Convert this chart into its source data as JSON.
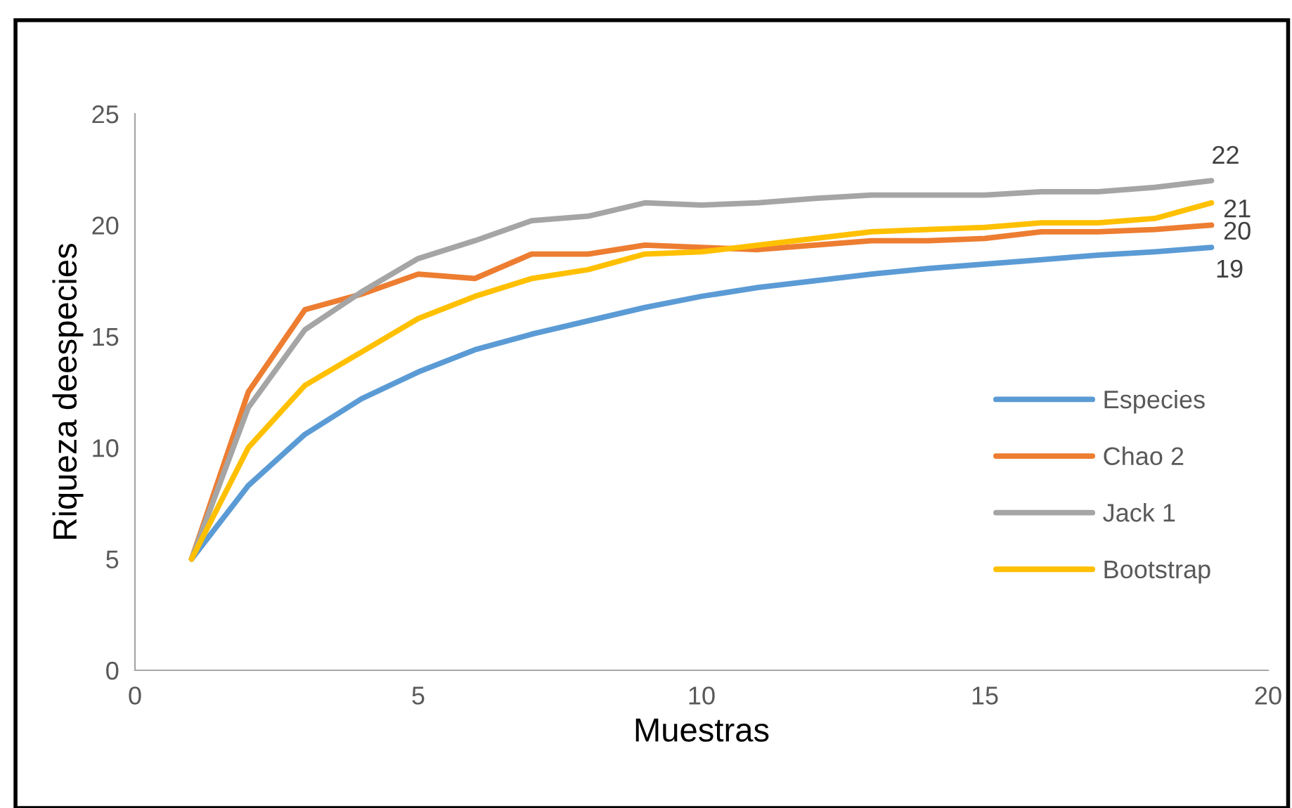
{
  "chart_data": {
    "type": "line",
    "xlabel": "Muestras",
    "ylabel": "Riqueza deespecies",
    "x": [
      1,
      2,
      3,
      4,
      5,
      6,
      7,
      8,
      9,
      10,
      11,
      12,
      13,
      14,
      15,
      16,
      17,
      18,
      19
    ],
    "series": [
      {
        "name": "Especies",
        "color": "#5b9bd5",
        "values": [
          5,
          8.3,
          10.6,
          12.2,
          13.4,
          14.4,
          15.1,
          15.7,
          16.3,
          16.8,
          17.2,
          17.5,
          17.8,
          18.05,
          18.25,
          18.45,
          18.65,
          18.8,
          19
        ],
        "value_labels": [
          null,
          null,
          null,
          null,
          null,
          null,
          null,
          null,
          null,
          null,
          null,
          null,
          null,
          null,
          null,
          null,
          null,
          null,
          "19"
        ]
      },
      {
        "name": "Chao 2",
        "color": "#ed7d31",
        "values": [
          5,
          12.5,
          16.2,
          16.9,
          17.8,
          17.6,
          18.7,
          18.7,
          19.1,
          19,
          18.9,
          19.1,
          19.3,
          19.3,
          19.4,
          19.7,
          19.7,
          19.8,
          20
        ],
        "value_labels": [
          null,
          null,
          null,
          null,
          null,
          null,
          null,
          null,
          null,
          null,
          null,
          null,
          null,
          null,
          null,
          null,
          null,
          null,
          "20"
        ]
      },
      {
        "name": "Jack 1",
        "color": "#a5a5a5",
        "values": [
          5,
          11.8,
          15.3,
          17,
          18.5,
          19.3,
          20.2,
          20.4,
          21,
          20.9,
          21,
          21.2,
          21.35,
          21.35,
          21.35,
          21.5,
          21.5,
          21.7,
          22
        ],
        "value_labels": [
          null,
          null,
          null,
          null,
          null,
          null,
          null,
          null,
          null,
          null,
          null,
          null,
          null,
          null,
          null,
          null,
          null,
          null,
          "22"
        ]
      },
      {
        "name": "Bootstrap",
        "color": "#ffc000",
        "values": [
          5,
          10,
          12.8,
          14.3,
          15.8,
          16.8,
          17.6,
          18,
          18.7,
          18.8,
          19.1,
          19.4,
          19.7,
          19.8,
          19.9,
          20.1,
          20.1,
          20.3,
          21
        ],
        "value_labels": [
          null,
          null,
          null,
          null,
          null,
          null,
          null,
          null,
          null,
          null,
          null,
          null,
          null,
          null,
          null,
          null,
          null,
          null,
          "21"
        ]
      }
    ],
    "xlim": [
      0,
      20
    ],
    "xticks": [
      0,
      5,
      10,
      15,
      20
    ],
    "ylim": [
      0,
      25
    ],
    "yticks": [
      0,
      5,
      10,
      15,
      20,
      25
    ],
    "grid": false,
    "legend": "right",
    "marker": "none",
    "line_style": "solid"
  }
}
